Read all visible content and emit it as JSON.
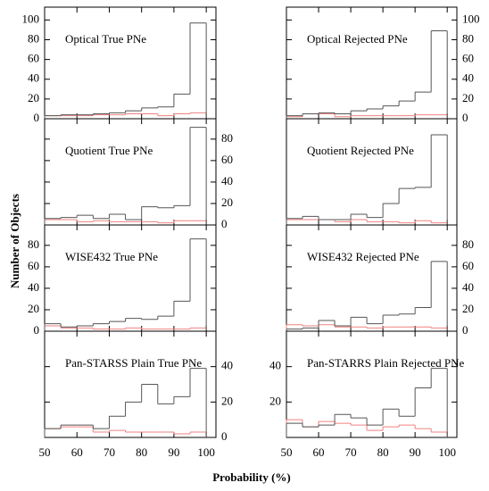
{
  "chart_data": {
    "type": "histogram",
    "xlabel": "Probability (%)",
    "ylabel": "Number of Objects",
    "xlim": [
      50,
      103
    ],
    "xticks": [
      50,
      60,
      70,
      80,
      90,
      100
    ],
    "bins": [
      50,
      55,
      60,
      65,
      70,
      75,
      80,
      85,
      90,
      95,
      100
    ],
    "panels": [
      {
        "title": "Optical True PNe",
        "ylim": [
          0,
          113
        ],
        "yticks": [
          0,
          20,
          40,
          60,
          80,
          100
        ],
        "ytick_side": "left",
        "series": [
          {
            "color": "#555555",
            "values": [
              3,
              4,
              4,
              5,
              6,
              8,
              11,
              12,
              25,
              97
            ]
          },
          {
            "color": "#f08080",
            "values": [
              3,
              3,
              3,
              4,
              4,
              5,
              5,
              3,
              5,
              6
            ]
          }
        ]
      },
      {
        "title": "Optical Rejected PNe",
        "ylim": [
          0,
          113
        ],
        "yticks": [
          0,
          20,
          40,
          60,
          80,
          100
        ],
        "ytick_side": "right",
        "series": [
          {
            "color": "#555555",
            "values": [
              3,
              5,
              6,
              5,
              8,
              10,
              13,
              18,
              27,
              89
            ]
          },
          {
            "color": "#f08080",
            "values": [
              2,
              5,
              5,
              2,
              3,
              3,
              3,
              3,
              4,
              4
            ]
          }
        ]
      },
      {
        "title": "Quotient True PNe",
        "ylim": [
          0,
          99
        ],
        "yticks": [
          0,
          20,
          40,
          60,
          80
        ],
        "ytick_side": "right",
        "series": [
          {
            "color": "#555555",
            "values": [
              6,
              7,
              9,
              6,
              10,
              5,
              17,
              16,
              18,
              91
            ]
          },
          {
            "color": "#f08080",
            "values": [
              5,
              5,
              3,
              4,
              3,
              3,
              3,
              2,
              4,
              4
            ]
          }
        ]
      },
      {
        "title": "Quotient Rejected PNe",
        "ylim": [
          0,
          99
        ],
        "ytick_side": "none",
        "series": [
          {
            "color": "#555555",
            "values": [
              6,
              8,
              5,
              5,
              10,
              7,
              20,
              34,
              35,
              84
            ]
          },
          {
            "color": "#f08080",
            "values": [
              5,
              5,
              5,
              3,
              5,
              3,
              3,
              2,
              4,
              2
            ]
          }
        ]
      },
      {
        "title": "WISE432 True PNe",
        "ylim": [
          0,
          99
        ],
        "yticks": [
          0,
          20,
          40,
          60,
          80
        ],
        "ytick_side": "left",
        "series": [
          {
            "color": "#555555",
            "values": [
              7,
              4,
              5,
              7,
              9,
              12,
              11,
              14,
              28,
              86
            ]
          },
          {
            "color": "#f08080",
            "values": [
              5,
              3,
              3,
              2,
              2,
              3,
              2,
              2,
              2,
              3
            ]
          }
        ]
      },
      {
        "title": "WISE432 Rejected PNe",
        "ylim": [
          0,
          99
        ],
        "yticks": [
          0,
          20,
          40,
          60,
          80
        ],
        "ytick_side": "right",
        "series": [
          {
            "color": "#555555",
            "values": [
              2,
              3,
              10,
              5,
              13,
              7,
              15,
              16,
              22,
              65
            ]
          },
          {
            "color": "#f08080",
            "values": [
              6,
              5,
              6,
              4,
              4,
              3,
              4,
              4,
              4,
              3
            ]
          }
        ]
      },
      {
        "title": "Pan-STARSS Plain True PNe",
        "ylim": [
          0,
          60
        ],
        "yticks": [
          0,
          20,
          40
        ],
        "ytick_side": "right",
        "series": [
          {
            "color": "#555555",
            "values": [
              5,
              7,
              7,
              5,
              12,
              20,
              30,
              19,
              23,
              39
            ]
          },
          {
            "color": "#f08080",
            "values": [
              5,
              6,
              6,
              3,
              4,
              3,
              3,
              3,
              2,
              3
            ]
          }
        ]
      },
      {
        "title": "Pan-STARRS Plain Rejected PNe",
        "ylim": [
          0,
          60
        ],
        "yticks": [
          20,
          40
        ],
        "ytick_side": "left",
        "series": [
          {
            "color": "#555555",
            "values": [
              8,
              6,
              7,
              13,
              11,
              7,
              16,
              12,
              28,
              39
            ]
          },
          {
            "color": "#f08080",
            "values": [
              10,
              6,
              9,
              8,
              7,
              4,
              6,
              7,
              5,
              3
            ]
          }
        ]
      }
    ]
  }
}
